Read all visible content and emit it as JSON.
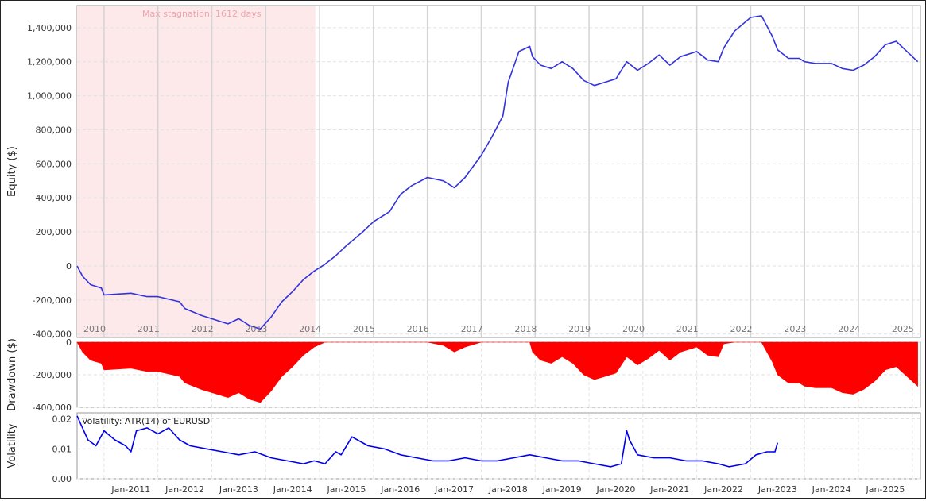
{
  "chart_data": [
    {
      "type": "line",
      "panel": "equity",
      "ylabel": "Equity ($)",
      "ylim": [
        -420000,
        1530000
      ],
      "yticks": [
        -400000,
        -200000,
        0,
        200000,
        400000,
        600000,
        800000,
        1000000,
        1200000,
        1400000
      ],
      "ytick_labels": [
        "-400,000",
        "-200,000",
        "0",
        "200,000",
        "400,000",
        "600,000",
        "800,000",
        "1,000,000",
        "1,200,000",
        "1,400,000"
      ],
      "year_labels": [
        "2010",
        "2011",
        "2012",
        "2013",
        "2014",
        "2015",
        "2016",
        "2017",
        "2018",
        "2019",
        "2020",
        "2021",
        "2022",
        "2023",
        "2024",
        "2025"
      ],
      "annotation": "Max stagnation: 1612 days",
      "stagnation_range": [
        2010.0,
        2014.42
      ],
      "line_color": "#3333dd",
      "shade_color": "#fde8ea",
      "x": [
        2010.0,
        2010.1,
        2010.25,
        2010.45,
        2010.5,
        2011.0,
        2011.3,
        2011.5,
        2011.9,
        2012.0,
        2012.3,
        2012.6,
        2012.8,
        2013.0,
        2013.2,
        2013.4,
        2013.6,
        2013.8,
        2014.0,
        2014.2,
        2014.4,
        2014.6,
        2014.8,
        2015.0,
        2015.3,
        2015.5,
        2015.8,
        2016.0,
        2016.2,
        2016.5,
        2016.8,
        2017.0,
        2017.2,
        2017.5,
        2017.7,
        2017.9,
        2018.0,
        2018.2,
        2018.4,
        2018.45,
        2018.6,
        2018.8,
        2019.0,
        2019.2,
        2019.4,
        2019.6,
        2019.8,
        2020.0,
        2020.2,
        2020.4,
        2020.6,
        2020.8,
        2021.0,
        2021.2,
        2021.5,
        2021.7,
        2021.9,
        2022.0,
        2022.2,
        2022.5,
        2022.7,
        2022.9,
        2023.0,
        2023.2,
        2023.4,
        2023.5,
        2023.7,
        2024.0,
        2024.2,
        2024.4,
        2024.6,
        2024.8,
        2025.0,
        2025.2,
        2025.4,
        2025.6
      ],
      "y": [
        0,
        -60000,
        -110000,
        -130000,
        -170000,
        -160000,
        -180000,
        -180000,
        -210000,
        -250000,
        -290000,
        -320000,
        -340000,
        -310000,
        -350000,
        -370000,
        -300000,
        -210000,
        -150000,
        -80000,
        -30000,
        10000,
        60000,
        120000,
        200000,
        260000,
        320000,
        420000,
        470000,
        520000,
        500000,
        460000,
        520000,
        650000,
        760000,
        880000,
        1080000,
        1260000,
        1290000,
        1230000,
        1180000,
        1160000,
        1200000,
        1160000,
        1090000,
        1060000,
        1080000,
        1100000,
        1200000,
        1150000,
        1190000,
        1240000,
        1180000,
        1230000,
        1260000,
        1210000,
        1200000,
        1280000,
        1380000,
        1460000,
        1470000,
        1350000,
        1270000,
        1220000,
        1220000,
        1200000,
        1190000,
        1190000,
        1160000,
        1150000,
        1180000,
        1230000,
        1300000,
        1320000,
        1260000,
        1200000
      ]
    },
    {
      "type": "area",
      "panel": "drawdown",
      "ylabel": "Drawdown ($)",
      "ylim": [
        -400000,
        0
      ],
      "yticks": [
        0,
        -200000,
        -400000
      ],
      "ytick_labels": [
        "0",
        "-200,000",
        "-400,000"
      ],
      "fill_color": "#ff0000",
      "x": [
        2010.0,
        2010.1,
        2010.25,
        2010.45,
        2010.5,
        2011.0,
        2011.3,
        2011.5,
        2011.9,
        2012.0,
        2012.3,
        2012.6,
        2012.8,
        2013.0,
        2013.2,
        2013.4,
        2013.6,
        2013.8,
        2014.0,
        2014.2,
        2014.4,
        2014.6,
        2014.8,
        2015.0,
        2015.3,
        2015.5,
        2015.8,
        2016.0,
        2016.2,
        2016.5,
        2016.8,
        2017.0,
        2017.2,
        2017.5,
        2017.7,
        2017.9,
        2018.0,
        2018.2,
        2018.4,
        2018.45,
        2018.6,
        2018.8,
        2019.0,
        2019.2,
        2019.4,
        2019.6,
        2019.8,
        2020.0,
        2020.2,
        2020.4,
        2020.6,
        2020.8,
        2021.0,
        2021.2,
        2021.5,
        2021.7,
        2021.9,
        2022.0,
        2022.2,
        2022.5,
        2022.7,
        2022.9,
        2023.0,
        2023.2,
        2023.4,
        2023.5,
        2023.7,
        2024.0,
        2024.2,
        2024.4,
        2024.6,
        2024.8,
        2025.0,
        2025.2,
        2025.4,
        2025.6
      ],
      "y": [
        0,
        -60000,
        -110000,
        -130000,
        -170000,
        -160000,
        -180000,
        -180000,
        -210000,
        -250000,
        -290000,
        -320000,
        -340000,
        -310000,
        -350000,
        -370000,
        -300000,
        -210000,
        -150000,
        -80000,
        -30000,
        0,
        0,
        0,
        0,
        0,
        0,
        0,
        0,
        0,
        -20000,
        -60000,
        -30000,
        0,
        0,
        0,
        0,
        0,
        0,
        -60000,
        -110000,
        -130000,
        -90000,
        -130000,
        -200000,
        -230000,
        -210000,
        -190000,
        -90000,
        -140000,
        -100000,
        -50000,
        -110000,
        -60000,
        -30000,
        -80000,
        -90000,
        -10000,
        0,
        0,
        0,
        -120000,
        -200000,
        -250000,
        -250000,
        -270000,
        -280000,
        -280000,
        -310000,
        -320000,
        -290000,
        -240000,
        -170000,
        -150000,
        -210000,
        -270000
      ]
    },
    {
      "type": "line",
      "panel": "volatility",
      "ylabel": "Volatility",
      "ylim": [
        0,
        0.022
      ],
      "yticks": [
        0,
        0.01,
        0.02
      ],
      "ytick_labels": [
        "0.00",
        "0.01",
        "0.02"
      ],
      "annotation": "Volatility: ATR(14) of EURUSD",
      "line_color": "#0000ee",
      "xtick_labels": [
        "Jan-2011",
        "Jan-2012",
        "Jan-2013",
        "Jan-2014",
        "Jan-2015",
        "Jan-2016",
        "Jan-2017",
        "Jan-2018",
        "Jan-2019",
        "Jan-2020",
        "Jan-2021",
        "Jan-2022",
        "Jan-2023",
        "Jan-2024",
        "Jan-2025"
      ],
      "x": [
        2010.0,
        2010.1,
        2010.2,
        2010.35,
        2010.5,
        2010.7,
        2010.9,
        2011.0,
        2011.1,
        2011.3,
        2011.5,
        2011.7,
        2011.9,
        2012.1,
        2012.4,
        2012.7,
        2013.0,
        2013.3,
        2013.6,
        2013.9,
        2014.2,
        2014.4,
        2014.6,
        2014.8,
        2014.9,
        2015.1,
        2015.4,
        2015.7,
        2016.0,
        2016.3,
        2016.6,
        2016.9,
        2017.2,
        2017.5,
        2017.8,
        2018.1,
        2018.4,
        2018.7,
        2019.0,
        2019.3,
        2019.6,
        2019.9,
        2020.1,
        2020.2,
        2020.25,
        2020.4,
        2020.7,
        2021.0,
        2021.3,
        2021.6,
        2021.9,
        2022.1,
        2022.4,
        2022.6,
        2022.8,
        2022.95,
        2023.0
      ],
      "y": [
        0.021,
        0.017,
        0.013,
        0.011,
        0.016,
        0.013,
        0.011,
        0.009,
        0.016,
        0.017,
        0.015,
        0.017,
        0.013,
        0.011,
        0.01,
        0.009,
        0.008,
        0.009,
        0.007,
        0.006,
        0.005,
        0.006,
        0.005,
        0.009,
        0.008,
        0.014,
        0.011,
        0.01,
        0.008,
        0.007,
        0.006,
        0.006,
        0.007,
        0.006,
        0.006,
        0.007,
        0.008,
        0.007,
        0.006,
        0.006,
        0.005,
        0.004,
        0.005,
        0.016,
        0.013,
        0.008,
        0.007,
        0.007,
        0.006,
        0.006,
        0.005,
        0.004,
        0.005,
        0.008,
        0.009,
        0.009,
        0.012
      ]
    }
  ]
}
